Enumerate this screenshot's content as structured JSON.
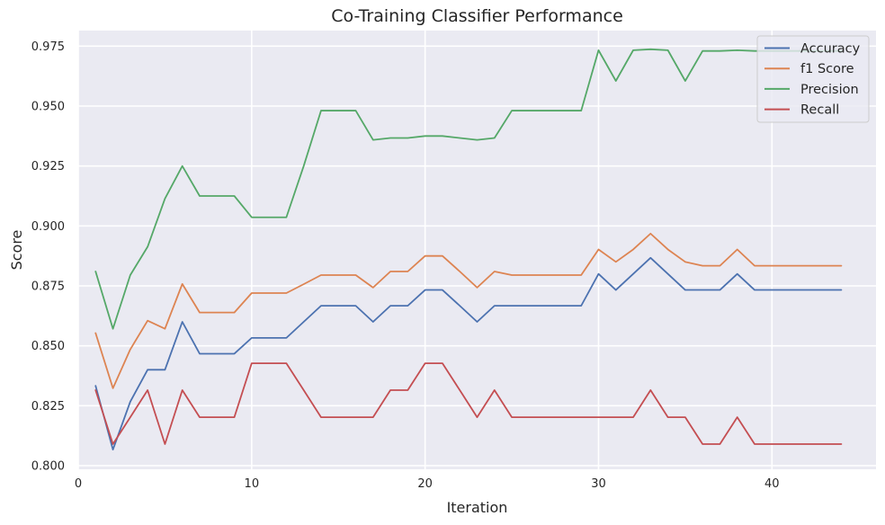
{
  "chart_data": {
    "type": "line",
    "title": "Co-Training Classifier Performance",
    "xlabel": "Iteration",
    "ylabel": "Score",
    "xlim": [
      0,
      46
    ],
    "ylim": [
      0.7985,
      0.9815
    ],
    "xticks": [
      0,
      10,
      20,
      30,
      40
    ],
    "yticks": [
      0.8,
      0.825,
      0.85,
      0.875,
      0.9,
      0.925,
      0.95,
      0.975
    ],
    "ytick_labels": [
      "0.800",
      "0.825",
      "0.850",
      "0.875",
      "0.900",
      "0.925",
      "0.950",
      "0.975"
    ],
    "grid": true,
    "legend_position": "top-right",
    "x": [
      1,
      2,
      3,
      4,
      5,
      6,
      7,
      8,
      9,
      10,
      11,
      12,
      13,
      14,
      15,
      16,
      17,
      18,
      19,
      20,
      21,
      22,
      23,
      24,
      25,
      26,
      27,
      28,
      29,
      30,
      31,
      32,
      33,
      34,
      35,
      36,
      37,
      38,
      39,
      40,
      41,
      42,
      43,
      44
    ],
    "series": [
      {
        "name": "Accuracy",
        "color": "#4c72b0",
        "values": [
          0.8333,
          0.8067,
          0.8267,
          0.84,
          0.84,
          0.86,
          0.8467,
          0.8467,
          0.8467,
          0.8533,
          0.8533,
          0.8533,
          0.86,
          0.8667,
          0.8667,
          0.8667,
          0.86,
          0.8667,
          0.8667,
          0.8733,
          0.8733,
          0.8667,
          0.86,
          0.8667,
          0.8667,
          0.8667,
          0.8667,
          0.8667,
          0.8667,
          0.88,
          0.8733,
          0.88,
          0.8867,
          0.88,
          0.8733,
          0.8733,
          0.8733,
          0.88,
          0.8733,
          0.8733,
          0.8733,
          0.8733,
          0.8733,
          0.8733
        ]
      },
      {
        "name": "f1 Score",
        "color": "#dd8452",
        "values": [
          0.8553,
          0.8323,
          0.8485,
          0.8605,
          0.8571,
          0.8758,
          0.8639,
          0.8639,
          0.8639,
          0.872,
          0.872,
          0.872,
          0.8757,
          0.8795,
          0.8795,
          0.8795,
          0.8743,
          0.881,
          0.881,
          0.8875,
          0.8875,
          0.881,
          0.8743,
          0.881,
          0.8795,
          0.8795,
          0.8795,
          0.8795,
          0.8795,
          0.8902,
          0.885,
          0.8902,
          0.8968,
          0.8902,
          0.885,
          0.8834,
          0.8834,
          0.8902,
          0.8834,
          0.8834,
          0.8834,
          0.8834,
          0.8834,
          0.8834
        ]
      },
      {
        "name": "Precision",
        "color": "#55a868",
        "values": [
          0.881,
          0.8571,
          0.8795,
          0.8913,
          0.9114,
          0.925,
          0.9125,
          0.9125,
          0.9125,
          0.9036,
          0.9036,
          0.9036,
          0.925,
          0.9481,
          0.9481,
          0.9481,
          0.9359,
          0.9367,
          0.9367,
          0.9375,
          0.9375,
          0.9367,
          0.9359,
          0.9367,
          0.9481,
          0.9481,
          0.9481,
          0.9481,
          0.9481,
          0.9733,
          0.9605,
          0.9733,
          0.9737,
          0.9733,
          0.9605,
          0.973,
          0.973,
          0.9733,
          0.973,
          0.973,
          0.973,
          0.973,
          0.973,
          0.973
        ]
      },
      {
        "name": "Recall",
        "color": "#c44e52",
        "values": [
          0.8315,
          0.809,
          0.8202,
          0.8315,
          0.809,
          0.8315,
          0.8202,
          0.8202,
          0.8202,
          0.8427,
          0.8427,
          0.8427,
          0.8315,
          0.8202,
          0.8202,
          0.8202,
          0.8202,
          0.8315,
          0.8315,
          0.8427,
          0.8427,
          0.8315,
          0.8202,
          0.8315,
          0.8202,
          0.8202,
          0.8202,
          0.8202,
          0.8202,
          0.8202,
          0.8202,
          0.8202,
          0.8315,
          0.8202,
          0.8202,
          0.809,
          0.809,
          0.8202,
          0.809,
          0.809,
          0.809,
          0.809,
          0.809,
          0.809
        ]
      }
    ]
  }
}
